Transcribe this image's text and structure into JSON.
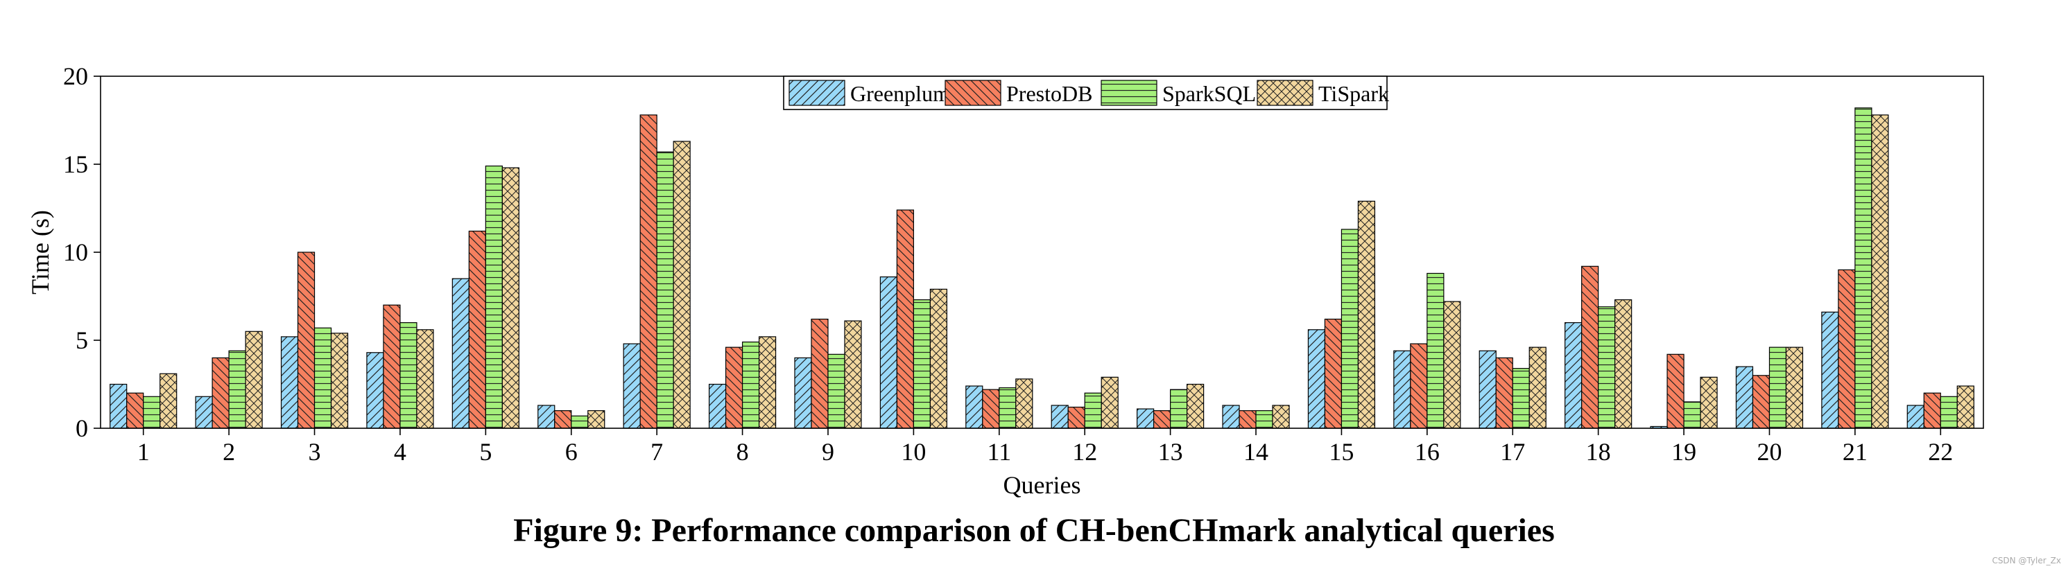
{
  "chart_data": {
    "type": "bar",
    "xlabel": "Queries",
    "ylabel": "Time (s)",
    "ylim": [
      0,
      20
    ],
    "yticks": [
      "0",
      "5",
      "10",
      "15",
      "20"
    ],
    "legend_position": "top-center",
    "grid": false,
    "categories": [
      "1",
      "2",
      "3",
      "4",
      "5",
      "6",
      "7",
      "8",
      "9",
      "10",
      "11",
      "12",
      "13",
      "14",
      "15",
      "16",
      "17",
      "18",
      "19",
      "20",
      "21",
      "22"
    ],
    "series": [
      {
        "name": "Greenplum",
        "color": "#99d9f8",
        "pattern": "diagonal-forward",
        "values": [
          2.5,
          1.8,
          5.2,
          4.3,
          8.5,
          1.3,
          4.8,
          2.5,
          4.0,
          8.6,
          2.4,
          1.3,
          1.1,
          1.3,
          5.6,
          4.4,
          4.4,
          6.0,
          0.1,
          3.5,
          6.6,
          1.3
        ]
      },
      {
        "name": "PrestoDB",
        "color": "#f6805f",
        "pattern": "diagonal-back",
        "values": [
          2.0,
          4.0,
          10.0,
          7.0,
          11.2,
          1.0,
          17.8,
          4.6,
          6.2,
          12.4,
          2.2,
          1.2,
          1.0,
          1.0,
          6.2,
          4.8,
          4.0,
          9.2,
          4.2,
          3.0,
          9.0,
          2.0
        ]
      },
      {
        "name": "SparkSQL",
        "color": "#a5f07c",
        "pattern": "horizontal",
        "values": [
          1.8,
          4.4,
          5.7,
          6.0,
          14.9,
          0.7,
          15.7,
          4.9,
          4.2,
          7.3,
          2.3,
          2.0,
          2.2,
          1.0,
          11.3,
          8.8,
          3.4,
          6.9,
          1.5,
          4.6,
          18.2,
          1.8
        ]
      },
      {
        "name": "TiSpark",
        "color": "#f2d79e",
        "pattern": "crosshatch",
        "values": [
          3.1,
          5.5,
          5.4,
          5.6,
          14.8,
          1.0,
          16.3,
          5.2,
          6.1,
          7.9,
          2.8,
          2.9,
          2.5,
          1.3,
          12.9,
          7.2,
          4.6,
          7.3,
          2.9,
          4.6,
          17.8,
          2.4
        ]
      }
    ]
  },
  "caption": "Figure 9: Performance comparison of CH-benCHmark analytical queries",
  "watermark": "CSDN @Tyler_Zx"
}
